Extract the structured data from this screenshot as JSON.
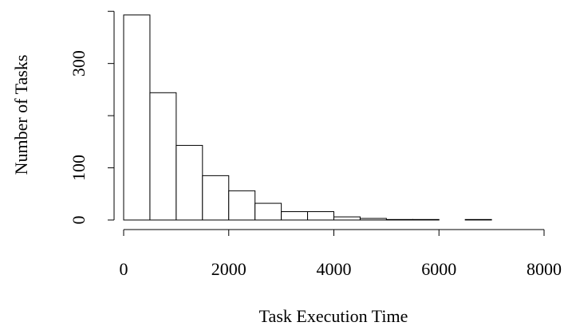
{
  "chart_data": {
    "type": "bar",
    "title": "",
    "xlabel": "Task Execution Time",
    "ylabel": "Number of Tasks",
    "xlim": [
      0,
      8000
    ],
    "ylim": [
      0,
      400
    ],
    "grid": false,
    "x_ticks": [
      0,
      2000,
      4000,
      6000,
      8000
    ],
    "y_ticks": [
      0,
      100,
      300
    ],
    "bins": [
      {
        "x0": 0,
        "x1": 500,
        "value": 393
      },
      {
        "x0": 500,
        "x1": 1000,
        "value": 244
      },
      {
        "x0": 1000,
        "x1": 1500,
        "value": 143
      },
      {
        "x0": 1500,
        "x1": 2000,
        "value": 85
      },
      {
        "x0": 2000,
        "x1": 2500,
        "value": 56
      },
      {
        "x0": 2500,
        "x1": 3000,
        "value": 32
      },
      {
        "x0": 3000,
        "x1": 3500,
        "value": 16
      },
      {
        "x0": 3500,
        "x1": 4000,
        "value": 16
      },
      {
        "x0": 4000,
        "x1": 4500,
        "value": 6
      },
      {
        "x0": 4500,
        "x1": 5000,
        "value": 3
      },
      {
        "x0": 5000,
        "x1": 5500,
        "value": 1
      },
      {
        "x0": 5500,
        "x1": 6000,
        "value": 1
      },
      {
        "x0": 6000,
        "x1": 6500,
        "value": 0
      },
      {
        "x0": 6500,
        "x1": 7000,
        "value": 1
      },
      {
        "x0": 7000,
        "x1": 7500,
        "value": 0
      },
      {
        "x0": 7500,
        "x1": 8000,
        "value": 0
      }
    ]
  }
}
